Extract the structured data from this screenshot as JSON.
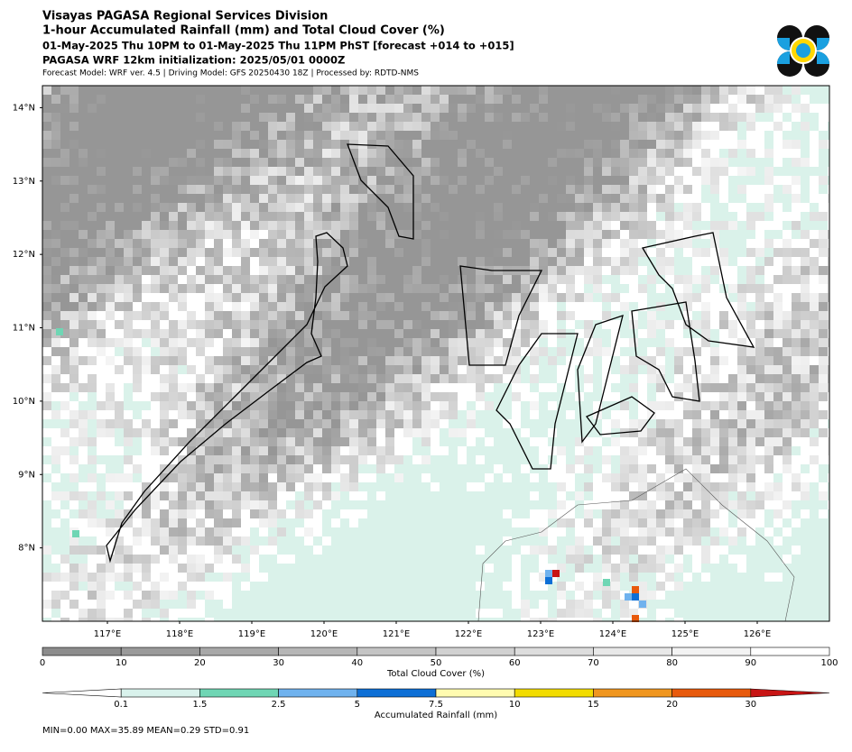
{
  "header": {
    "title_lines": [
      "Visayas PAGASA Regional Services Division",
      "1-hour Accumulated Rainfall (mm) and Total Cloud Cover (%)",
      "01-May-2025 Thu 10PM to 01-May-2025 Thu 11PM PhST [forecast +014 to +015]",
      "PAGASA WRF 12km initialization: 2025/05/01 0000Z"
    ],
    "subtitle": "Forecast Model: WRF ver. 4.5 | Driving Model: GFS 20250430 18Z | Processed by: RDTD-NMS"
  },
  "chart_data": {
    "type": "map",
    "xlim": [
      116.1,
      127.0
    ],
    "ylim": [
      7.0,
      14.3
    ],
    "xticks": [
      {
        "value": 117,
        "label": "117°E"
      },
      {
        "value": 118,
        "label": "118°E"
      },
      {
        "value": 119,
        "label": "119°E"
      },
      {
        "value": 120,
        "label": "120°E"
      },
      {
        "value": 121,
        "label": "121°E"
      },
      {
        "value": 122,
        "label": "122°E"
      },
      {
        "value": 123,
        "label": "123°E"
      },
      {
        "value": 124,
        "label": "124°E"
      },
      {
        "value": 125,
        "label": "125°E"
      },
      {
        "value": 126,
        "label": "126°E"
      }
    ],
    "yticks": [
      {
        "value": 8,
        "label": "8°N"
      },
      {
        "value": 9,
        "label": "9°N"
      },
      {
        "value": 10,
        "label": "10°N"
      },
      {
        "value": 11,
        "label": "11°N"
      },
      {
        "value": 12,
        "label": "12°N"
      },
      {
        "value": 13,
        "label": "13°N"
      },
      {
        "value": 14,
        "label": "14°N"
      }
    ],
    "colorbars": [
      {
        "label": "Total Cloud Cover (%)",
        "bounds": [
          0,
          10,
          20,
          30,
          40,
          50,
          60,
          70,
          80,
          90,
          100
        ],
        "colors": [
          "#8c8c8c",
          "#9a9a9a",
          "#a8a8a8",
          "#b6b6b6",
          "#c4c4c4",
          "#d1d1d1",
          "#dddddd",
          "#e8e8e8",
          "#f3f3f3",
          "#ffffff"
        ]
      },
      {
        "label": "Accumulated Rainfall (mm)",
        "bounds": [
          0.1,
          1.5,
          2.5,
          5,
          7.5,
          10,
          15,
          20,
          30
        ],
        "colors": [
          "#ffffff",
          "#d9f2ec",
          "#6fd6b4",
          "#6fb2ee",
          "#0d6fd6",
          "#fffbb0",
          "#f2dc00",
          "#f0961f",
          "#e85a0c",
          "#c81414"
        ]
      }
    ],
    "stats": "MIN=0.00   MAX=35.89   MEAN=0.29   STD=0.91"
  }
}
